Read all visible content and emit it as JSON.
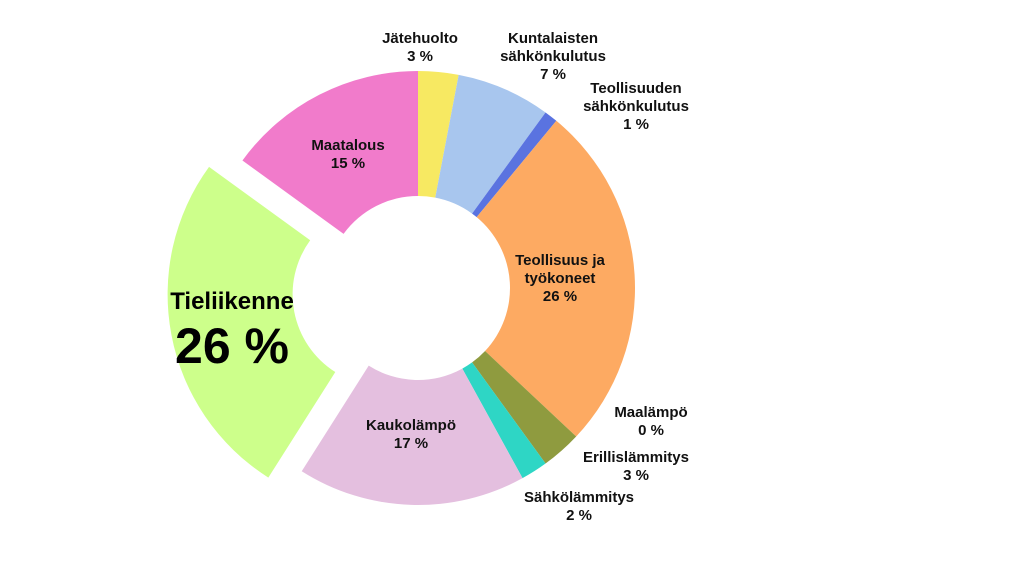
{
  "chart_data": {
    "type": "pie",
    "style": "donut",
    "title": "",
    "slices": [
      {
        "name": "Jätehuolto",
        "value": 3,
        "value_label": "3 %",
        "color": "#F7E962"
      },
      {
        "name": "Kuntalaisten sähkönkulutus",
        "value": 7,
        "value_label": "7 %",
        "color": "#A8C6EE"
      },
      {
        "name": "Teollisuuden sähkönkulutus",
        "value": 1,
        "value_label": "1 %",
        "color": "#5A73E0"
      },
      {
        "name": "Teollisuus ja työkoneet",
        "value": 26,
        "value_label": "26 %",
        "color": "#FDAA62"
      },
      {
        "name": "Maalämpö",
        "value": 0,
        "value_label": "0 %",
        "color": "#8F9B3F"
      },
      {
        "name": "Erillislämmitys",
        "value": 3,
        "value_label": "3 %",
        "color": "#8F9B3F"
      },
      {
        "name": "Sähkölämmitys",
        "value": 2,
        "value_label": "2 %",
        "color": "#2ED6C5"
      },
      {
        "name": "Kaukolämpö",
        "value": 17,
        "value_label": "17 %",
        "color": "#E4BFDF"
      },
      {
        "name": "Tieliikenne",
        "value": 26,
        "value_label": "26 %",
        "color": "#CDFF8B",
        "exploded": true
      },
      {
        "name": "Maatalous",
        "value": 15,
        "value_label": "15 %",
        "color": "#F17BCB"
      }
    ]
  }
}
